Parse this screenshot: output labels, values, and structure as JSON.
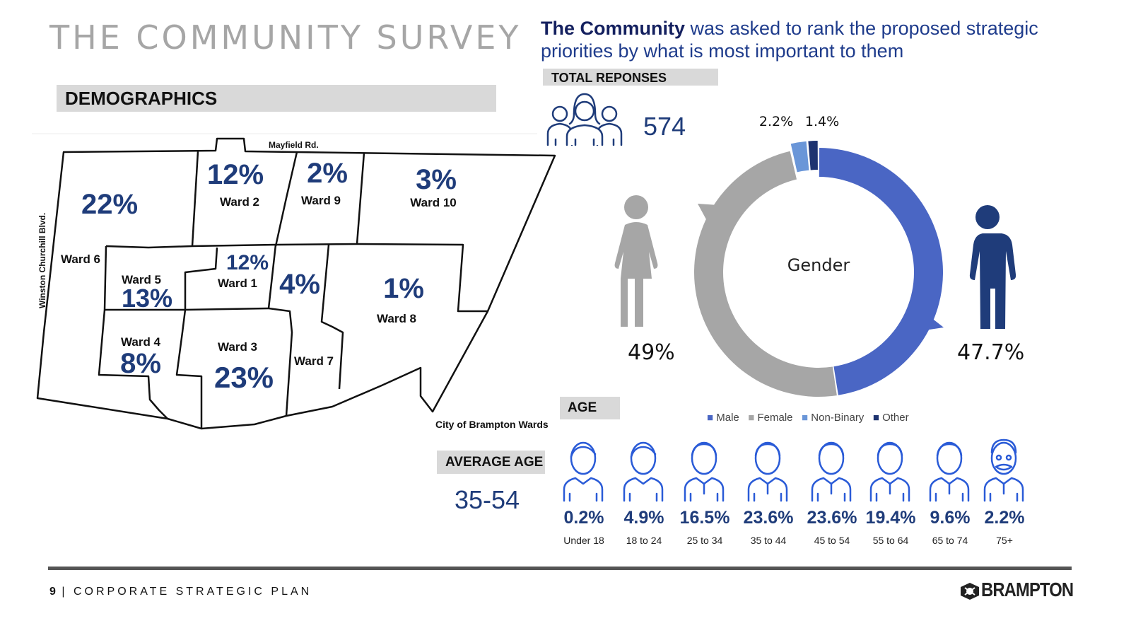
{
  "header": {
    "title": "THE COMMUNITY SURVEY",
    "demographics_label": "DEMOGRAPHICS",
    "subheading_strong": "The Community",
    "subheading_rest": " was asked to rank the proposed strategic priorities by what is most important to them"
  },
  "total_responses": {
    "label": "TOTAL REPONSES",
    "value": "574"
  },
  "average_age": {
    "label": "AVERAGE AGE",
    "value": "35-54"
  },
  "age_section_label": "AGE",
  "map": {
    "caption": "City of Brampton Wards",
    "road_top": "Mayfield Rd.",
    "road_left": "Winston Churchill Blvd."
  },
  "colors": {
    "male": "#4a66c4",
    "female": "#a6a6a6",
    "nonbinary": "#6a96d8",
    "other": "#1e3370",
    "navy": "#1f3c7a"
  },
  "footer": {
    "page_number": "9",
    "separator": "|",
    "plan_text": "CORPORATE STRATEGIC PLAN",
    "brand": "BRAMPTON"
  },
  "chart_data": [
    {
      "type": "map",
      "title": "City of Brampton Wards",
      "categories": [
        "Ward 6",
        "Ward 2",
        "Ward 9",
        "Ward 10",
        "Ward 5",
        "Ward 1",
        "Ward 8",
        "Ward 4",
        "Ward 3",
        "Ward 7"
      ],
      "labels": [
        "22%",
        "12%",
        "2%",
        "3%",
        "13%",
        "12%",
        "1%",
        "8%",
        "23%",
        "4%"
      ],
      "values": [
        22,
        12,
        2,
        3,
        13,
        12,
        1,
        8,
        23,
        4
      ]
    },
    {
      "type": "pie",
      "title": "Gender",
      "categories": [
        "Male",
        "Female",
        "Non-Binary",
        "Other"
      ],
      "values": [
        47.7,
        49,
        2.2,
        1.4
      ],
      "labels": [
        "47.7%",
        "49%",
        "2.2%",
        "1.4%"
      ]
    },
    {
      "type": "bar",
      "title": "AGE",
      "categories": [
        "Under 18",
        "18 to 24",
        "25 to 34",
        "35 to 44",
        "45 to 54",
        "55 to 64",
        "65 to 74",
        "75+"
      ],
      "values": [
        0.2,
        4.9,
        16.5,
        23.6,
        23.6,
        19.4,
        9.6,
        2.2
      ],
      "labels": [
        "0.2%",
        "4.9%",
        "16.5%",
        "23.6%",
        "23.6%",
        "19.4%",
        "9.6%",
        "2.2%"
      ]
    }
  ]
}
